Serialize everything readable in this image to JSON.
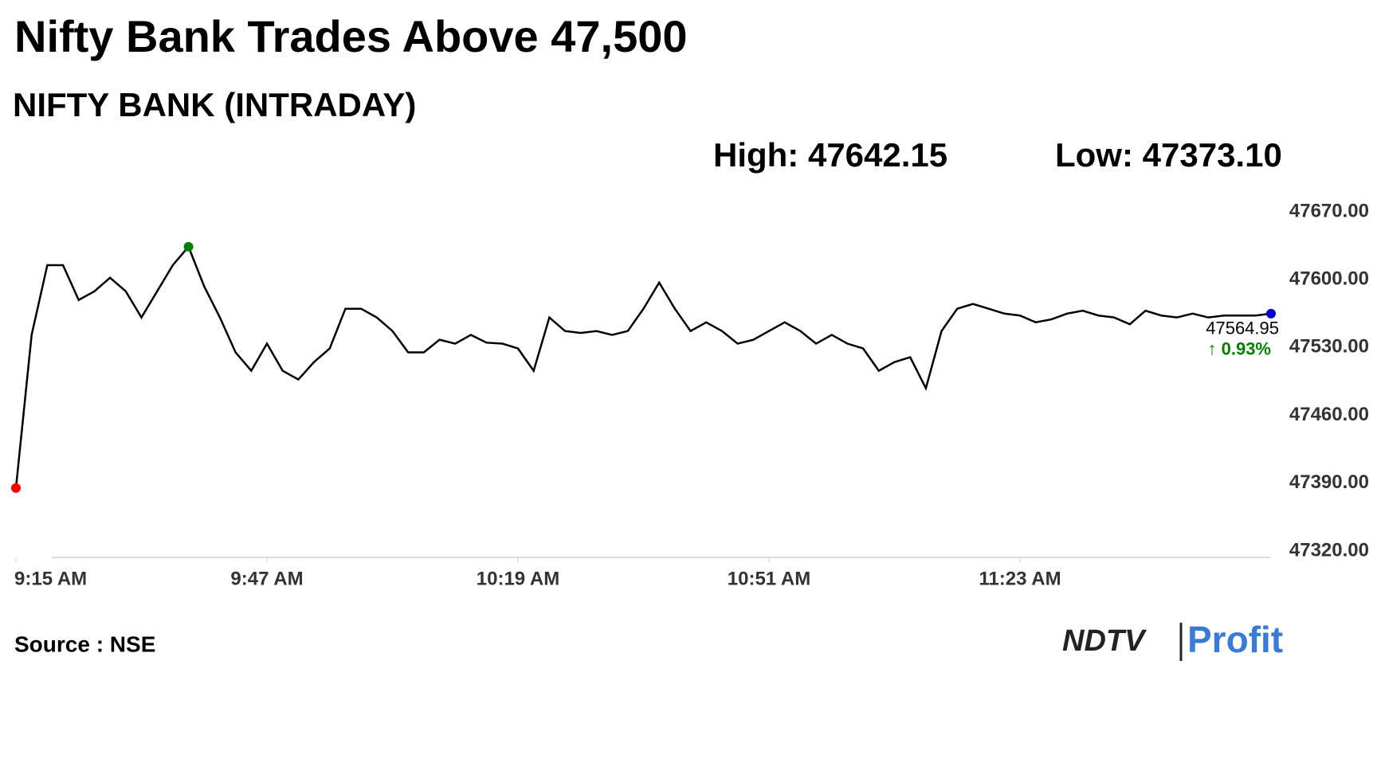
{
  "chart_data": {
    "type": "line",
    "title": "Nifty Bank Trades Above 47,500",
    "subtitle": "NIFTY BANK (INTRADAY)",
    "high_label": "High: 47642.15",
    "low_label": "Low: 47373.10",
    "last_label": "47564.95",
    "change_label": "↑ 0.93%",
    "source": "Source : NSE",
    "logo": [
      "NDTV",
      "Profit"
    ],
    "color": "#000000",
    "start_color": "#ff0000",
    "high_color": "#008000",
    "end_color": "#0000cc",
    "change_color": "#008000",
    "x": [
      "9:15 AM",
      "9:17 AM",
      "9:19 AM",
      "9:21 AM",
      "9:23 AM",
      "9:25 AM",
      "9:27 AM",
      "9:29 AM",
      "9:31 AM",
      "9:33 AM",
      "9:35 AM",
      "9:37 AM",
      "9:39 AM",
      "9:41 AM",
      "9:43 AM",
      "9:45 AM",
      "9:47 AM",
      "9:49 AM",
      "9:51 AM",
      "9:53 AM",
      "9:55 AM",
      "9:57 AM",
      "9:59 AM",
      "10:01 AM",
      "10:03 AM",
      "10:05 AM",
      "10:07 AM",
      "10:09 AM",
      "10:11 AM",
      "10:13 AM",
      "10:15 AM",
      "10:17 AM",
      "10:19 AM",
      "10:21 AM",
      "10:23 AM",
      "10:25 AM",
      "10:27 AM",
      "10:29 AM",
      "10:31 AM",
      "10:33 AM",
      "10:35 AM",
      "10:37 AM",
      "10:39 AM",
      "10:41 AM",
      "10:43 AM",
      "10:45 AM",
      "10:47 AM",
      "10:49 AM",
      "10:51 AM",
      "10:53 AM",
      "10:55 AM",
      "10:57 AM",
      "10:59 AM",
      "11:01 AM",
      "11:03 AM",
      "11:05 AM",
      "11:07 AM",
      "11:09 AM",
      "11:11 AM",
      "11:13 AM",
      "11:15 AM",
      "11:17 AM",
      "11:19 AM",
      "11:21 AM",
      "11:23 AM",
      "11:25 AM",
      "11:27 AM",
      "11:29 AM",
      "11:31 AM",
      "11:33 AM",
      "11:35 AM",
      "11:37 AM",
      "11:39 AM",
      "11:41 AM",
      "11:43 AM",
      "11:45 AM",
      "11:47 AM",
      "11:49 AM",
      "11:51 AM",
      "11:53 AM",
      "11:55 AM"
    ],
    "values": [
      47385,
      47543,
      47615,
      47615,
      47579,
      47588,
      47602,
      47588,
      47561,
      47588,
      47615,
      47634,
      47593,
      47561,
      47525,
      47506,
      47534,
      47506,
      47497,
      47515,
      47529,
      47570,
      47570,
      47561,
      47547,
      47525,
      47525,
      47538,
      47534,
      47543,
      47535,
      47534,
      47529,
      47506,
      47561,
      47547,
      47545,
      47547,
      47543,
      47547,
      47570,
      47597,
      47570,
      47547,
      47556,
      47547,
      47534,
      47538,
      47547,
      47556,
      47547,
      47534,
      47543,
      47534,
      47529,
      47506,
      47515,
      47520,
      47488,
      47547,
      47570,
      47575,
      47570,
      47565,
      47563,
      47556,
      47559,
      47565,
      47568,
      47563,
      47561,
      47554,
      47568,
      47563,
      47561,
      47565,
      47561,
      47563,
      47563,
      47563,
      47564.95
    ],
    "xticks": [
      "9:15 AM",
      "9:47 AM",
      "10:19 AM",
      "10:51 AM",
      "11:23 AM"
    ],
    "ylim": [
      47320,
      47670
    ],
    "yticks": [
      {
        "value": 47320,
        "label": "47320.00"
      },
      {
        "value": 47390,
        "label": "47390.00"
      },
      {
        "value": 47460,
        "label": "47460.00"
      },
      {
        "value": 47530,
        "label": "47530.00"
      },
      {
        "value": 47600,
        "label": "47600.00"
      },
      {
        "value": 47670,
        "label": "47670.00"
      }
    ]
  }
}
